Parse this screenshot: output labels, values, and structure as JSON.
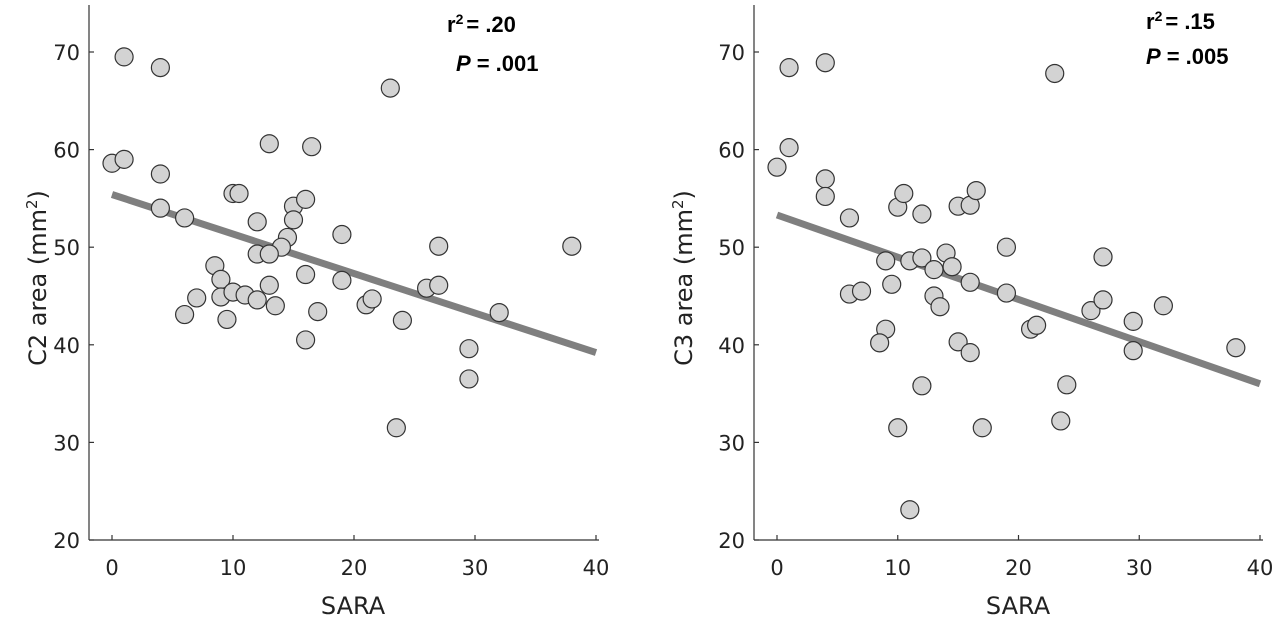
{
  "chart_data": [
    {
      "type": "scatter",
      "xlabel": "SARA",
      "ylabel_main": "C2 area (mm",
      "ylabel_sup": "2",
      "ylabel_close": ")",
      "xlim": [
        0,
        40
      ],
      "ylim": [
        20,
        75
      ],
      "xticks": [
        "0",
        "10",
        "20",
        "30",
        "40"
      ],
      "yticks": [
        "20",
        "30",
        "40",
        "50",
        "60",
        "70"
      ],
      "grid": false,
      "stat_r_label": "r",
      "stat_r_sup": "2",
      "stat_r_value": "= .20",
      "stat_p_label": "P",
      "stat_p_value": "= .001",
      "trendline": {
        "x": [
          0,
          40
        ],
        "y": [
          55.4,
          39.2
        ]
      },
      "points": [
        {
          "x": 1,
          "y": 69.5
        },
        {
          "x": 4,
          "y": 68.4
        },
        {
          "x": 23,
          "y": 66.3
        },
        {
          "x": 0,
          "y": 58.6
        },
        {
          "x": 1,
          "y": 59.0
        },
        {
          "x": 4,
          "y": 57.5
        },
        {
          "x": 13,
          "y": 60.6
        },
        {
          "x": 16.5,
          "y": 60.3
        },
        {
          "x": 4,
          "y": 54.0
        },
        {
          "x": 6,
          "y": 53.0
        },
        {
          "x": 10,
          "y": 55.5
        },
        {
          "x": 10.5,
          "y": 55.5
        },
        {
          "x": 12,
          "y": 52.6
        },
        {
          "x": 15,
          "y": 54.2
        },
        {
          "x": 16,
          "y": 54.9
        },
        {
          "x": 15,
          "y": 52.8
        },
        {
          "x": 14.5,
          "y": 51.0
        },
        {
          "x": 14,
          "y": 50.0
        },
        {
          "x": 12,
          "y": 49.3
        },
        {
          "x": 13,
          "y": 49.3
        },
        {
          "x": 19,
          "y": 51.3
        },
        {
          "x": 27,
          "y": 50.1
        },
        {
          "x": 38,
          "y": 50.1
        },
        {
          "x": 8.5,
          "y": 48.1
        },
        {
          "x": 9,
          "y": 46.7
        },
        {
          "x": 16,
          "y": 47.2
        },
        {
          "x": 19,
          "y": 46.6
        },
        {
          "x": 7,
          "y": 44.8
        },
        {
          "x": 9,
          "y": 44.9
        },
        {
          "x": 10,
          "y": 45.4
        },
        {
          "x": 11,
          "y": 45.1
        },
        {
          "x": 12,
          "y": 44.6
        },
        {
          "x": 13,
          "y": 46.1
        },
        {
          "x": 13.5,
          "y": 44.0
        },
        {
          "x": 21,
          "y": 44.1
        },
        {
          "x": 21.5,
          "y": 44.7
        },
        {
          "x": 26,
          "y": 45.8
        },
        {
          "x": 27,
          "y": 46.1
        },
        {
          "x": 6,
          "y": 43.1
        },
        {
          "x": 9.5,
          "y": 42.6
        },
        {
          "x": 17,
          "y": 43.4
        },
        {
          "x": 24,
          "y": 42.5
        },
        {
          "x": 32,
          "y": 43.3
        },
        {
          "x": 16,
          "y": 40.5
        },
        {
          "x": 29.5,
          "y": 39.6
        },
        {
          "x": 29.5,
          "y": 36.5
        },
        {
          "x": 23.5,
          "y": 31.5
        }
      ]
    },
    {
      "type": "scatter",
      "xlabel": "SARA",
      "ylabel_main": "C3 area (mm",
      "ylabel_sup": "2",
      "ylabel_close": ")",
      "xlim": [
        0,
        40
      ],
      "ylim": [
        20,
        75
      ],
      "xticks": [
        "0",
        "10",
        "20",
        "30",
        "40"
      ],
      "yticks": [
        "20",
        "30",
        "40",
        "50",
        "60",
        "70"
      ],
      "grid": false,
      "stat_r_label": "r",
      "stat_r_sup": "2",
      "stat_r_value": "= .15",
      "stat_p_label": "P",
      "stat_p_value": "= .005",
      "trendline": {
        "x": [
          0,
          40
        ],
        "y": [
          53.3,
          36.0
        ]
      },
      "points": [
        {
          "x": 1,
          "y": 68.4
        },
        {
          "x": 4,
          "y": 68.9
        },
        {
          "x": 23,
          "y": 67.8
        },
        {
          "x": 0,
          "y": 58.2
        },
        {
          "x": 1,
          "y": 60.2
        },
        {
          "x": 4,
          "y": 57.0
        },
        {
          "x": 4,
          "y": 55.2
        },
        {
          "x": 6,
          "y": 53.0
        },
        {
          "x": 10,
          "y": 54.1
        },
        {
          "x": 10.5,
          "y": 55.5
        },
        {
          "x": 12,
          "y": 53.4
        },
        {
          "x": 15,
          "y": 54.2
        },
        {
          "x": 16,
          "y": 54.3
        },
        {
          "x": 16.5,
          "y": 55.8
        },
        {
          "x": 19,
          "y": 50.0
        },
        {
          "x": 27,
          "y": 49.0
        },
        {
          "x": 14,
          "y": 49.4
        },
        {
          "x": 9,
          "y": 48.6
        },
        {
          "x": 11,
          "y": 48.6
        },
        {
          "x": 12,
          "y": 48.9
        },
        {
          "x": 13,
          "y": 47.7
        },
        {
          "x": 14.5,
          "y": 48.0
        },
        {
          "x": 16,
          "y": 46.4
        },
        {
          "x": 19,
          "y": 45.3
        },
        {
          "x": 6,
          "y": 45.2
        },
        {
          "x": 7,
          "y": 45.5
        },
        {
          "x": 9.5,
          "y": 46.2
        },
        {
          "x": 13,
          "y": 45.0
        },
        {
          "x": 13.5,
          "y": 43.9
        },
        {
          "x": 26,
          "y": 43.5
        },
        {
          "x": 27,
          "y": 44.6
        },
        {
          "x": 32,
          "y": 44.0
        },
        {
          "x": 29.5,
          "y": 42.4
        },
        {
          "x": 9,
          "y": 41.6
        },
        {
          "x": 8.5,
          "y": 40.2
        },
        {
          "x": 15,
          "y": 40.3
        },
        {
          "x": 16,
          "y": 39.2
        },
        {
          "x": 21,
          "y": 41.6
        },
        {
          "x": 21.5,
          "y": 42.0
        },
        {
          "x": 29.5,
          "y": 39.4
        },
        {
          "x": 38,
          "y": 39.7
        },
        {
          "x": 12,
          "y": 35.8
        },
        {
          "x": 24,
          "y": 35.9
        },
        {
          "x": 10,
          "y": 31.5
        },
        {
          "x": 17,
          "y": 31.5
        },
        {
          "x": 23.5,
          "y": 32.2
        },
        {
          "x": 11,
          "y": 23.1
        }
      ]
    }
  ]
}
